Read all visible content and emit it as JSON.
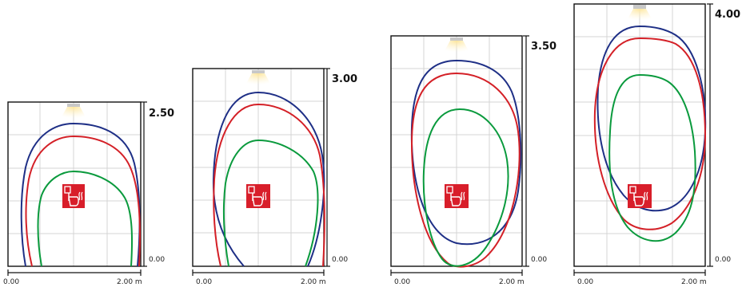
{
  "diagram": {
    "colors": {
      "blue": "#1e2f86",
      "red": "#d42027",
      "green": "#0a9a3d",
      "frame": "#111111",
      "grid": "#d4d4d4",
      "sign_bg": "#d81e2a",
      "light_glow": "#fde9a3"
    },
    "icons": {
      "ceiling_light": "ceiling-light-icon",
      "alarm_sign": "fire-alarm-call-point-icon"
    },
    "panels": [
      {
        "height_label": "2.50",
        "base_label": "0.00",
        "x_start_label": "0.00",
        "x_end_label": "2.00 m"
      },
      {
        "height_label": "3.00",
        "base_label": "0.00",
        "x_start_label": "0.00",
        "x_end_label": "2.00 m"
      },
      {
        "height_label": "3.50",
        "base_label": "0.00",
        "x_start_label": "0.00",
        "x_end_label": "2.00 m"
      },
      {
        "height_label": "4.00",
        "base_label": "0.00",
        "x_start_label": "0.00",
        "x_end_label": "2.00 m"
      }
    ]
  }
}
